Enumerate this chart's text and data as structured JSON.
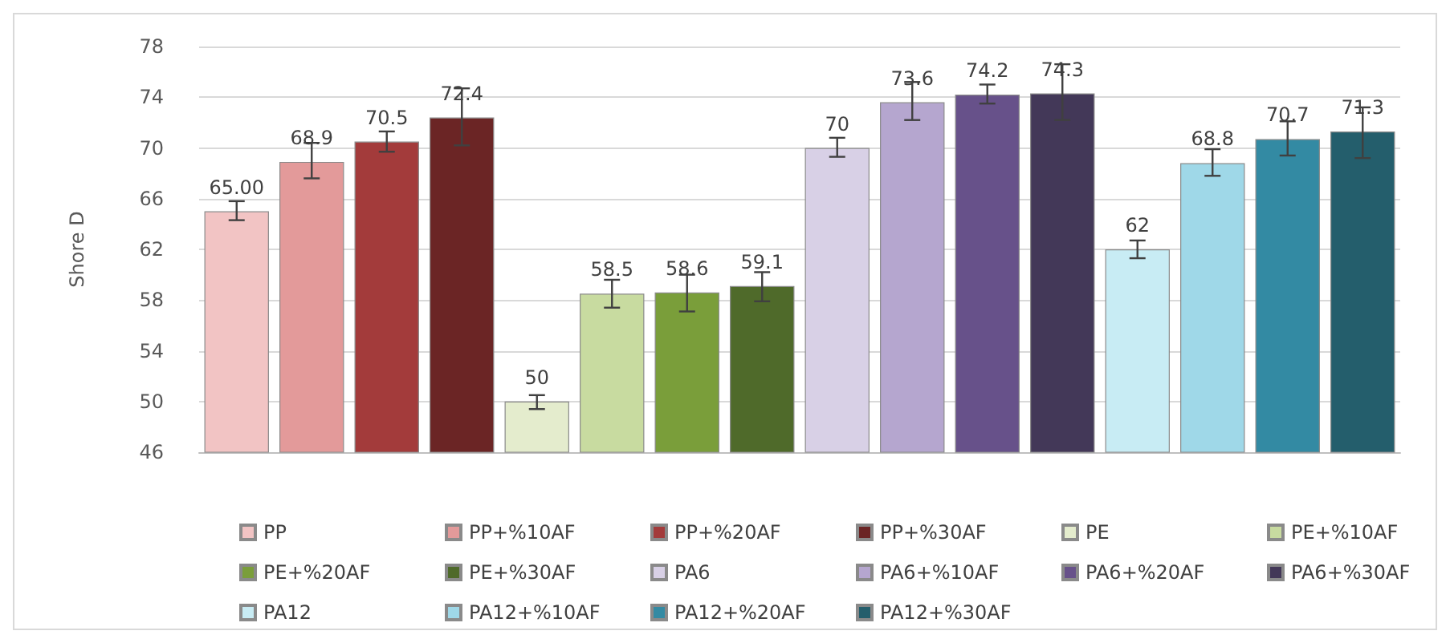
{
  "chart_data": {
    "type": "bar",
    "ylabel": "Shore D",
    "categories": [
      null,
      null,
      null,
      null,
      null,
      null,
      null,
      null,
      null,
      null,
      null,
      null,
      null,
      null,
      null,
      null
    ],
    "ylim": [
      46,
      78
    ],
    "yticks": [
      46,
      50,
      54,
      58,
      62,
      66,
      70,
      74,
      78
    ],
    "grid": "y",
    "legend": "bottom",
    "series": [
      {
        "name": "PP",
        "color": "#f2c4c4",
        "values": [
          65,
          null,
          null,
          null,
          null,
          null,
          null,
          null,
          null,
          null,
          null,
          null,
          null,
          null,
          null,
          null
        ],
        "errors": [
          [
            64.3,
            65.8
          ],
          null,
          null,
          null,
          null,
          null,
          null,
          null,
          null,
          null,
          null,
          null,
          null,
          null,
          null,
          null
        ],
        "value_labels": [
          "65.00",
          null,
          null,
          null,
          null,
          null,
          null,
          null,
          null,
          null,
          null,
          null,
          null,
          null,
          null,
          null
        ]
      },
      {
        "name": "PP+%10AF",
        "color": "#e39a9a",
        "values": [
          null,
          68.9,
          null,
          null,
          null,
          null,
          null,
          null,
          null,
          null,
          null,
          null,
          null,
          null,
          null,
          null
        ],
        "errors": [
          null,
          [
            67.6,
            70.4
          ],
          null,
          null,
          null,
          null,
          null,
          null,
          null,
          null,
          null,
          null,
          null,
          null,
          null,
          null
        ],
        "value_labels": [
          null,
          "68.9",
          null,
          null,
          null,
          null,
          null,
          null,
          null,
          null,
          null,
          null,
          null,
          null,
          null,
          null
        ]
      },
      {
        "name": "PP+%20AF",
        "color": "#a33b3b",
        "values": [
          null,
          null,
          70.5,
          null,
          null,
          null,
          null,
          null,
          null,
          null,
          null,
          null,
          null,
          null,
          null,
          null
        ],
        "errors": [
          null,
          null,
          [
            69.7,
            71.3
          ],
          null,
          null,
          null,
          null,
          null,
          null,
          null,
          null,
          null,
          null,
          null,
          null,
          null
        ],
        "value_labels": [
          null,
          null,
          "70.5",
          null,
          null,
          null,
          null,
          null,
          null,
          null,
          null,
          null,
          null,
          null,
          null,
          null
        ]
      },
      {
        "name": "PP+%30AF",
        "color": "#6b2525",
        "values": [
          null,
          null,
          null,
          72.4,
          null,
          null,
          null,
          null,
          null,
          null,
          null,
          null,
          null,
          null,
          null,
          null
        ],
        "errors": [
          null,
          null,
          null,
          [
            70.2,
            74.7
          ],
          null,
          null,
          null,
          null,
          null,
          null,
          null,
          null,
          null,
          null,
          null,
          null
        ],
        "value_labels": [
          null,
          null,
          null,
          "72.4",
          null,
          null,
          null,
          null,
          null,
          null,
          null,
          null,
          null,
          null,
          null,
          null
        ]
      },
      {
        "name": "PE",
        "color": "#e4eccd",
        "values": [
          null,
          null,
          null,
          null,
          50,
          null,
          null,
          null,
          null,
          null,
          null,
          null,
          null,
          null,
          null,
          null
        ],
        "errors": [
          null,
          null,
          null,
          null,
          [
            49.4,
            50.5
          ],
          null,
          null,
          null,
          null,
          null,
          null,
          null,
          null,
          null,
          null,
          null
        ],
        "value_labels": [
          null,
          null,
          null,
          null,
          "50",
          null,
          null,
          null,
          null,
          null,
          null,
          null,
          null,
          null,
          null,
          null
        ]
      },
      {
        "name": "PE+%10AF",
        "color": "#c8dba0",
        "values": [
          null,
          null,
          null,
          null,
          null,
          58.5,
          null,
          null,
          null,
          null,
          null,
          null,
          null,
          null,
          null,
          null
        ],
        "errors": [
          null,
          null,
          null,
          null,
          null,
          [
            57.4,
            59.6
          ],
          null,
          null,
          null,
          null,
          null,
          null,
          null,
          null,
          null,
          null
        ],
        "value_labels": [
          null,
          null,
          null,
          null,
          null,
          "58.5",
          null,
          null,
          null,
          null,
          null,
          null,
          null,
          null,
          null,
          null
        ]
      },
      {
        "name": "PE+%20AF",
        "color": "#7a9e3a",
        "values": [
          null,
          null,
          null,
          null,
          null,
          null,
          58.6,
          null,
          null,
          null,
          null,
          null,
          null,
          null,
          null,
          null
        ],
        "errors": [
          null,
          null,
          null,
          null,
          null,
          null,
          [
            57.1,
            60.0
          ],
          null,
          null,
          null,
          null,
          null,
          null,
          null,
          null,
          null
        ],
        "value_labels": [
          null,
          null,
          null,
          null,
          null,
          null,
          "58.6",
          null,
          null,
          null,
          null,
          null,
          null,
          null,
          null,
          null
        ]
      },
      {
        "name": "PE+%30AF",
        "color": "#4f6a2a",
        "values": [
          null,
          null,
          null,
          null,
          null,
          null,
          null,
          59.1,
          null,
          null,
          null,
          null,
          null,
          null,
          null,
          null
        ],
        "errors": [
          null,
          null,
          null,
          null,
          null,
          null,
          null,
          [
            57.9,
            60.2
          ],
          null,
          null,
          null,
          null,
          null,
          null,
          null,
          null
        ],
        "value_labels": [
          null,
          null,
          null,
          null,
          null,
          null,
          null,
          "59.1",
          null,
          null,
          null,
          null,
          null,
          null,
          null,
          null
        ]
      },
      {
        "name": "PA6",
        "color": "#d8d0e6",
        "values": [
          null,
          null,
          null,
          null,
          null,
          null,
          null,
          null,
          70,
          null,
          null,
          null,
          null,
          null,
          null,
          null
        ],
        "errors": [
          null,
          null,
          null,
          null,
          null,
          null,
          null,
          null,
          [
            69.3,
            70.8
          ],
          null,
          null,
          null,
          null,
          null,
          null,
          null
        ],
        "value_labels": [
          null,
          null,
          null,
          null,
          null,
          null,
          null,
          null,
          "70",
          null,
          null,
          null,
          null,
          null,
          null,
          null
        ]
      },
      {
        "name": "PA6+%10AF",
        "color": "#b5a6cf",
        "values": [
          null,
          null,
          null,
          null,
          null,
          null,
          null,
          null,
          null,
          73.6,
          null,
          null,
          null,
          null,
          null,
          null
        ],
        "errors": [
          null,
          null,
          null,
          null,
          null,
          null,
          null,
          null,
          null,
          [
            72.2,
            75.2
          ],
          null,
          null,
          null,
          null,
          null,
          null
        ],
        "value_labels": [
          null,
          null,
          null,
          null,
          null,
          null,
          null,
          null,
          null,
          "73.6",
          null,
          null,
          null,
          null,
          null,
          null
        ]
      },
      {
        "name": "PA6+%20AF",
        "color": "#67518a",
        "values": [
          null,
          null,
          null,
          null,
          null,
          null,
          null,
          null,
          null,
          null,
          74.2,
          null,
          null,
          null,
          null,
          null
        ],
        "errors": [
          null,
          null,
          null,
          null,
          null,
          null,
          null,
          null,
          null,
          null,
          [
            73.5,
            75.0
          ],
          null,
          null,
          null,
          null,
          null
        ],
        "value_labels": [
          null,
          null,
          null,
          null,
          null,
          null,
          null,
          null,
          null,
          null,
          "74.2",
          null,
          null,
          null,
          null,
          null
        ]
      },
      {
        "name": "PA6+%30AF",
        "color": "#433858",
        "values": [
          null,
          null,
          null,
          null,
          null,
          null,
          null,
          null,
          null,
          null,
          null,
          74.3,
          null,
          null,
          null,
          null
        ],
        "errors": [
          null,
          null,
          null,
          null,
          null,
          null,
          null,
          null,
          null,
          null,
          null,
          [
            72.2,
            76.6
          ],
          null,
          null,
          null,
          null
        ],
        "value_labels": [
          null,
          null,
          null,
          null,
          null,
          null,
          null,
          null,
          null,
          null,
          null,
          "74.3",
          null,
          null,
          null,
          null
        ]
      },
      {
        "name": "PA12",
        "color": "#c8ecf4",
        "values": [
          null,
          null,
          null,
          null,
          null,
          null,
          null,
          null,
          null,
          null,
          null,
          null,
          62,
          null,
          null,
          null
        ],
        "errors": [
          null,
          null,
          null,
          null,
          null,
          null,
          null,
          null,
          null,
          null,
          null,
          null,
          [
            61.3,
            62.7
          ],
          null,
          null,
          null
        ],
        "value_labels": [
          null,
          null,
          null,
          null,
          null,
          null,
          null,
          null,
          null,
          null,
          null,
          null,
          "62",
          null,
          null,
          null
        ]
      },
      {
        "name": "PA12+%10AF",
        "color": "#9fd8e8",
        "values": [
          null,
          null,
          null,
          null,
          null,
          null,
          null,
          null,
          null,
          null,
          null,
          null,
          null,
          68.8,
          null,
          null
        ],
        "errors": [
          null,
          null,
          null,
          null,
          null,
          null,
          null,
          null,
          null,
          null,
          null,
          null,
          null,
          [
            67.8,
            69.9
          ],
          null,
          null
        ],
        "value_labels": [
          null,
          null,
          null,
          null,
          null,
          null,
          null,
          null,
          null,
          null,
          null,
          null,
          null,
          "68.8",
          null,
          null
        ]
      },
      {
        "name": "PA12+%20AF",
        "color": "#338aa3",
        "values": [
          null,
          null,
          null,
          null,
          null,
          null,
          null,
          null,
          null,
          null,
          null,
          null,
          null,
          null,
          70.7,
          null
        ],
        "errors": [
          null,
          null,
          null,
          null,
          null,
          null,
          null,
          null,
          null,
          null,
          null,
          null,
          null,
          null,
          [
            69.4,
            72.1
          ],
          null
        ],
        "value_labels": [
          null,
          null,
          null,
          null,
          null,
          null,
          null,
          null,
          null,
          null,
          null,
          null,
          null,
          null,
          "70.7",
          null
        ]
      },
      {
        "name": "PA12+%30AF",
        "color": "#245e6c",
        "values": [
          null,
          null,
          null,
          null,
          null,
          null,
          null,
          null,
          null,
          null,
          null,
          null,
          null,
          null,
          null,
          71.3
        ],
        "errors": [
          null,
          null,
          null,
          null,
          null,
          null,
          null,
          null,
          null,
          null,
          null,
          null,
          null,
          null,
          null,
          [
            69.2,
            73.2
          ]
        ],
        "value_labels": [
          null,
          null,
          null,
          null,
          null,
          null,
          null,
          null,
          null,
          null,
          null,
          null,
          null,
          null,
          null,
          "71.3"
        ]
      }
    ]
  }
}
